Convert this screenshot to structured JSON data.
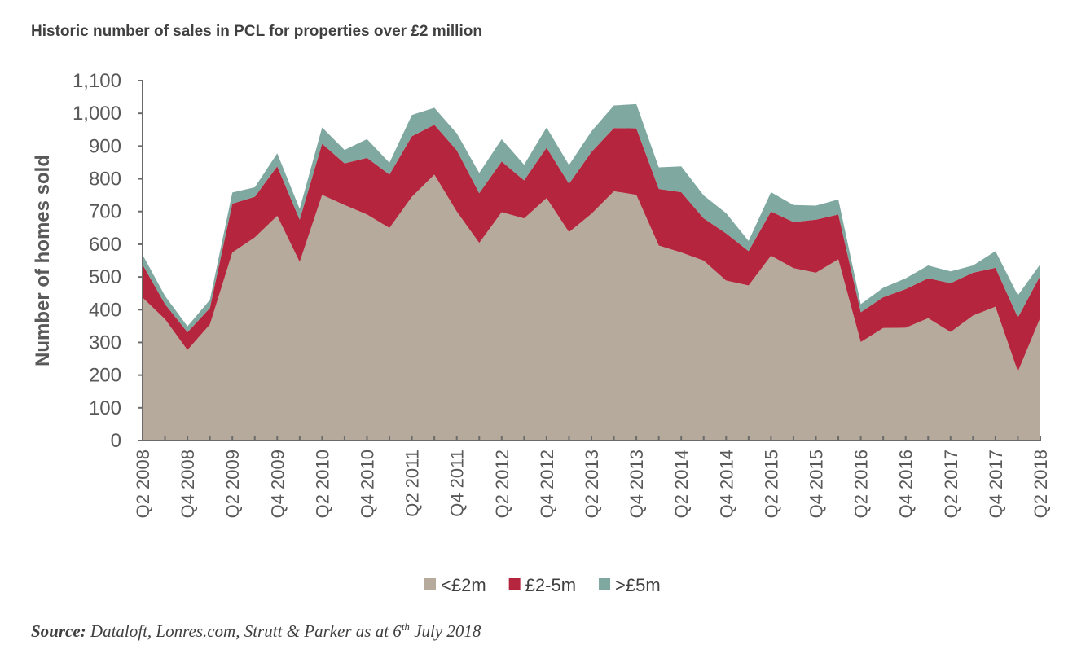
{
  "title": "Historic number of sales in PCL for properties over £2 million",
  "source": {
    "label": "Source:",
    "text": "Dataloft, Lonres.com, Strutt & Parker as at 6",
    "sup": "th",
    "tail": " July 2018"
  },
  "chart_data": {
    "type": "area",
    "stacked": true,
    "title": "Historic number of sales in PCL for properties over £2 million",
    "xlabel": "",
    "ylabel": "Number of homes sold",
    "ylim": [
      0,
      1100
    ],
    "yticks": [
      0,
      100,
      200,
      300,
      400,
      500,
      600,
      700,
      800,
      900,
      1000,
      1100
    ],
    "ytick_labels": [
      "0",
      "100",
      "200",
      "300",
      "400",
      "500",
      "600",
      "700",
      "800",
      "900",
      "1,000",
      "1,100"
    ],
    "grid": false,
    "legend": "bottom",
    "categories": [
      "Q2 2008",
      "Q3 2008",
      "Q4 2008",
      "Q1 2009",
      "Q2 2009",
      "Q3 2009",
      "Q4 2009",
      "Q1 2010",
      "Q2 2010",
      "Q3 2010",
      "Q4 2010",
      "Q1 2011",
      "Q2 2011",
      "Q3 2011",
      "Q4 2011",
      "Q1 2012",
      "Q2 2012",
      "Q3 2012",
      "Q4 2012",
      "Q1 2013",
      "Q2 2013",
      "Q3 2013",
      "Q4 2013",
      "Q1 2014",
      "Q2 2014",
      "Q3 2014",
      "Q4 2014",
      "Q1 2015",
      "Q2 2015",
      "Q3 2015",
      "Q4 2015",
      "Q1 2016",
      "Q2 2016",
      "Q3 2016",
      "Q4 2016",
      "Q1 2017",
      "Q2 2017",
      "Q3 2017",
      "Q4 2017",
      "Q1 2018",
      "Q2 2018"
    ],
    "series": [
      {
        "name": "<£2m",
        "color": "#b5aa9b",
        "values": [
          437,
          371,
          277,
          355,
          575,
          621,
          687,
          546,
          751,
          720,
          691,
          650,
          745,
          813,
          700,
          604,
          698,
          679,
          741,
          637,
          693,
          762,
          751,
          596,
          575,
          550,
          489,
          474,
          565,
          527,
          513,
          554,
          301,
          344,
          345,
          374,
          332,
          382,
          409,
          211,
          376
        ]
      },
      {
        "name": "£2-5m",
        "color": "#b5253d",
        "values": [
          101,
          46,
          54,
          50,
          149,
          124,
          151,
          129,
          156,
          127,
          173,
          163,
          185,
          152,
          187,
          152,
          155,
          116,
          154,
          148,
          189,
          193,
          203,
          173,
          184,
          129,
          144,
          105,
          135,
          141,
          162,
          137,
          91,
          94,
          118,
          122,
          149,
          131,
          119,
          165,
          128
        ]
      },
      {
        "name": ">£5m",
        "color": "#7fa8a0",
        "values": [
          30,
          25,
          18,
          25,
          34,
          29,
          40,
          33,
          50,
          41,
          57,
          36,
          65,
          52,
          52,
          62,
          68,
          48,
          62,
          57,
          63,
          69,
          74,
          66,
          79,
          70,
          62,
          31,
          59,
          52,
          43,
          46,
          25,
          29,
          33,
          39,
          36,
          22,
          51,
          68,
          35
        ]
      }
    ]
  }
}
